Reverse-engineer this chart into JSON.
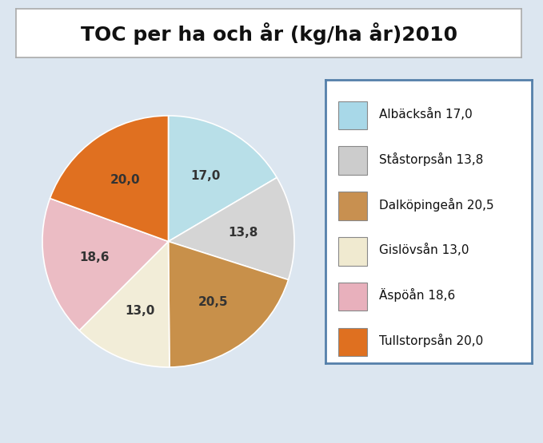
{
  "title": "TOC per ha och år (kg/ha år)2010",
  "labels": [
    "Albäcksån 17,0",
    "Ståstorpsån 13,8",
    "Dalköpingeån 20,5",
    "Gislövsån 13,0",
    "Äspöån 18,6",
    "Tullstorpsån 20,0"
  ],
  "values": [
    17.0,
    13.8,
    20.5,
    13.0,
    18.6,
    20.0
  ],
  "slice_labels": [
    "17,0",
    "13,8",
    "20,5",
    "13,0",
    "18,6",
    "20,0"
  ],
  "colors": [
    "#b8dfe8",
    "#d5d5d5",
    "#c8904a",
    "#f2edd8",
    "#ebbcc4",
    "#e07020"
  ],
  "legend_colors": [
    "#a8d8e8",
    "#cccccc",
    "#c89050",
    "#f0ead0",
    "#e8b0bc",
    "#df7020"
  ],
  "bg_color": "#dce6f0",
  "title_fontsize": 18,
  "label_fontsize": 11,
  "legend_fontsize": 11,
  "startangle": 90
}
